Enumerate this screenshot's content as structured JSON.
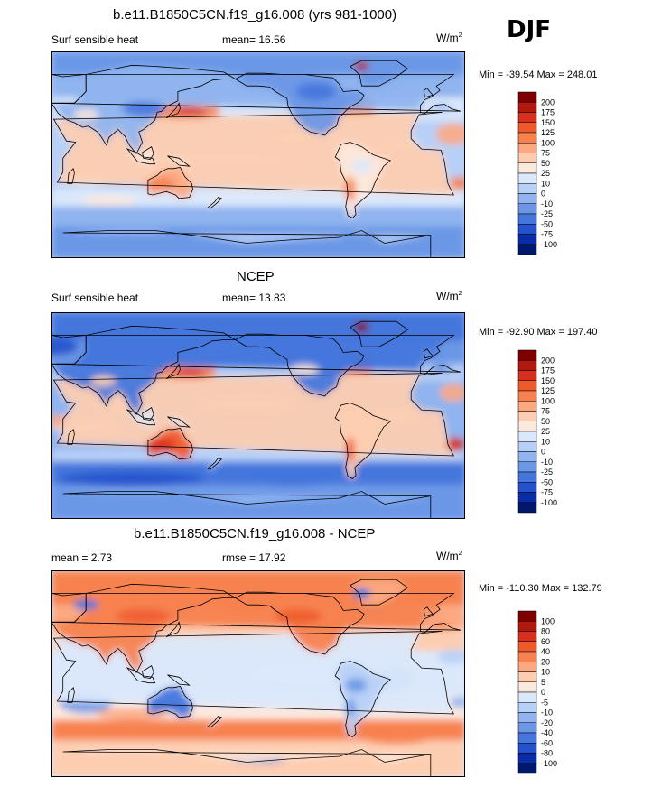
{
  "season": "DJF",
  "panels": [
    {
      "title": "b.e11.B1850C5CN.f19_g16.008 (yrs 981-1000)",
      "left_label": "Surf sensible heat",
      "center_label": "mean=  16.56",
      "units": "W/m",
      "units_sup": "2",
      "minmax": "Min = -39.54 Max = 248.01"
    },
    {
      "title": "NCEP",
      "left_label": "Surf sensible heat",
      "center_label": "mean=  13.83",
      "units": "W/m",
      "units_sup": "2",
      "minmax": "Min = -92.90 Max = 197.40"
    },
    {
      "title": "b.e11.B1850C5CN.f19_g16.008 - NCEP",
      "left_label": "mean =   2.73",
      "center_label": "rmse =  17.92",
      "units": "W/m",
      "units_sup": "2",
      "minmax": "Min = -110.30 Max = 132.79"
    }
  ],
  "chart_data": [
    {
      "type": "heatmap",
      "title": "b.e11.B1850C5CN.f19_g16.008 (yrs 981-1000)",
      "variable": "Surf sensible heat",
      "mean": 16.56,
      "units": "W/m2",
      "min": -39.54,
      "max": 248.01,
      "colorbar_levels": [
        "200",
        "175",
        "150",
        "125",
        "100",
        "75",
        "50",
        "25",
        "10",
        "0",
        "-10",
        "-25",
        "-50",
        "-75",
        "-100"
      ],
      "colorbar_colors": [
        "#7f0000",
        "#b2180e",
        "#d7301f",
        "#ef5a2c",
        "#f7824f",
        "#fca982",
        "#fdcdb0",
        "#fde8dc",
        "#dbe8fb",
        "#b7d0f7",
        "#8fb4ef",
        "#6b97e6",
        "#4476dc",
        "#2451cc",
        "#0a2ca8",
        "#00186e"
      ]
    },
    {
      "type": "heatmap",
      "title": "NCEP",
      "variable": "Surf sensible heat",
      "mean": 13.83,
      "units": "W/m2",
      "min": -92.9,
      "max": 197.4,
      "colorbar_levels": [
        "200",
        "175",
        "150",
        "125",
        "100",
        "75",
        "50",
        "25",
        "10",
        "0",
        "-10",
        "-25",
        "-50",
        "-75",
        "-100"
      ],
      "colorbar_colors": [
        "#7f0000",
        "#b2180e",
        "#d7301f",
        "#ef5a2c",
        "#f7824f",
        "#fca982",
        "#fdcdb0",
        "#fde8dc",
        "#dbe8fb",
        "#b7d0f7",
        "#8fb4ef",
        "#6b97e6",
        "#4476dc",
        "#2451cc",
        "#0a2ca8",
        "#00186e"
      ]
    },
    {
      "type": "heatmap",
      "title": "b.e11.B1850C5CN.f19_g16.008 - NCEP",
      "mean": 2.73,
      "rmse": 17.92,
      "units": "W/m2",
      "min": -110.3,
      "max": 132.79,
      "colorbar_levels": [
        "100",
        "80",
        "60",
        "40",
        "20",
        "10",
        "5",
        "0",
        "-5",
        "-10",
        "-20",
        "-40",
        "-60",
        "-80",
        "-100"
      ],
      "colorbar_colors": [
        "#7f0000",
        "#b2180e",
        "#d7301f",
        "#ef5a2c",
        "#f7824f",
        "#fca982",
        "#fdcdb0",
        "#fde8dc",
        "#dbe8fb",
        "#b7d0f7",
        "#8fb4ef",
        "#6b97e6",
        "#4476dc",
        "#2451cc",
        "#0a2ca8",
        "#00186e"
      ]
    }
  ]
}
